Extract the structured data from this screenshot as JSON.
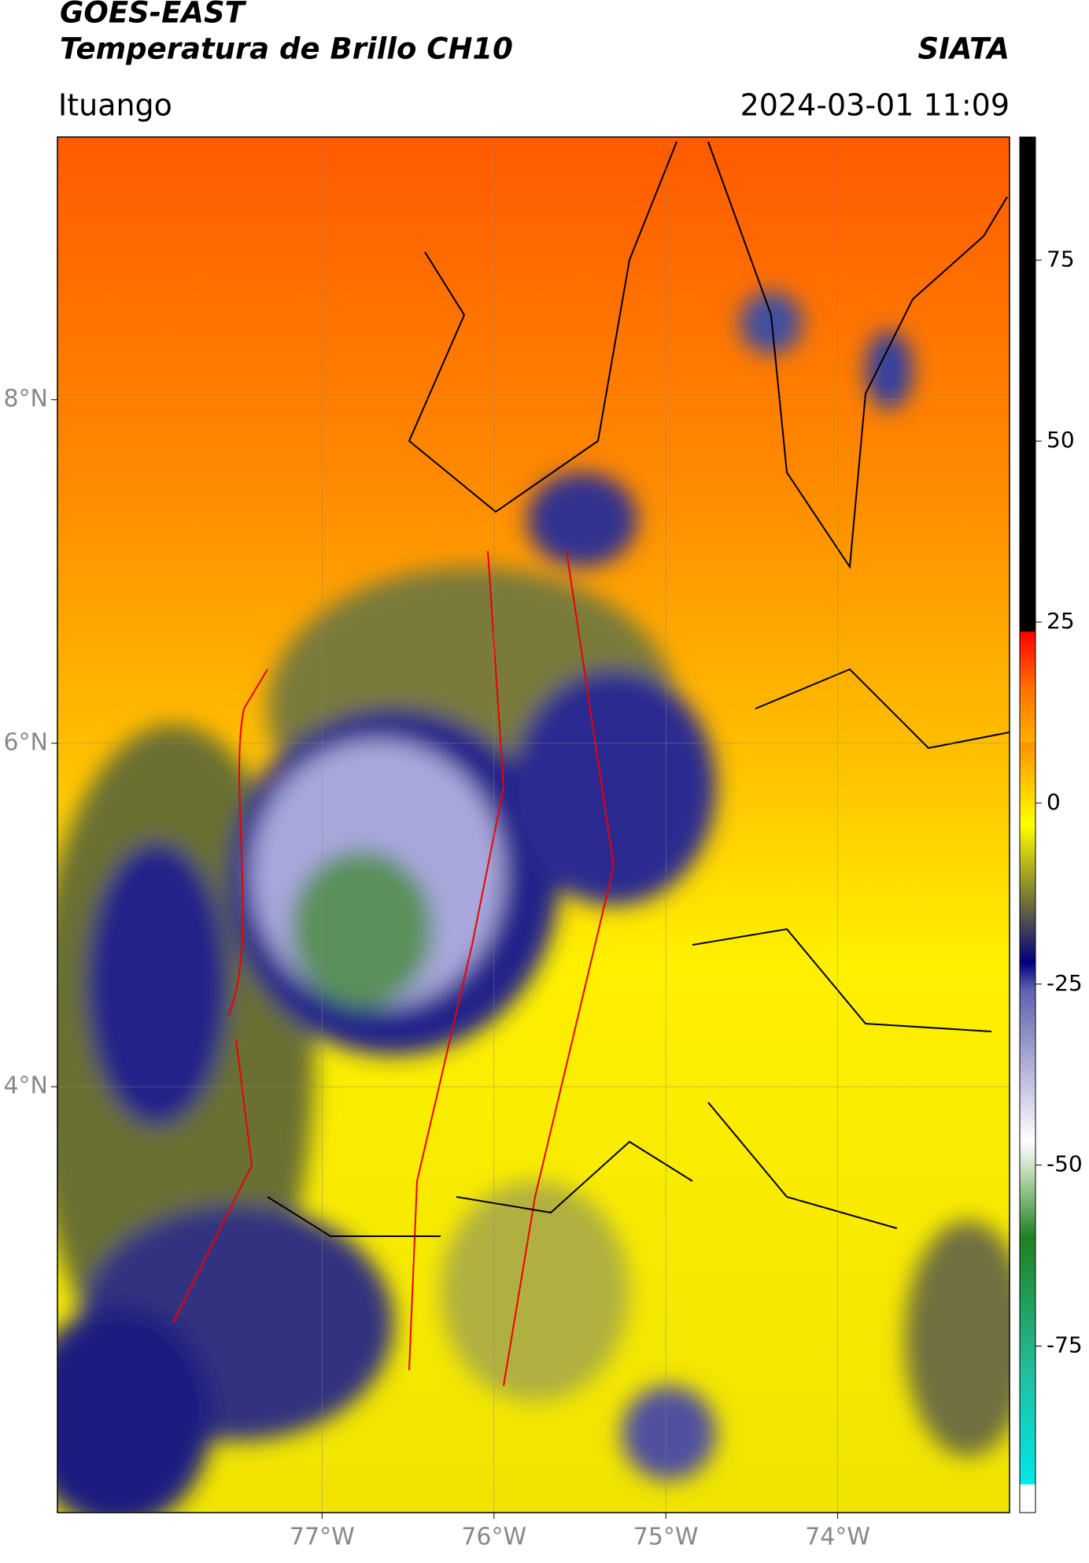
{
  "header": {
    "title": "GOES-EAST",
    "subtitle": "Temperatura de Brillo CH10",
    "brand": "SIATA",
    "location": "Ituango",
    "datetime": "2024-03-01 11:09"
  },
  "map": {
    "xlim": [
      -78.54,
      -73.0
    ],
    "ylim": [
      1.52,
      9.53
    ],
    "xticks": [
      {
        "value": -77,
        "label": "77°W"
      },
      {
        "value": -76,
        "label": "76°W"
      },
      {
        "value": -75,
        "label": "75°W"
      },
      {
        "value": -74,
        "label": "74°W"
      }
    ],
    "yticks": [
      {
        "value": 4,
        "label": "4°N"
      },
      {
        "value": 6,
        "label": "6°N"
      },
      {
        "value": 8,
        "label": "8°N"
      }
    ],
    "grid": true
  },
  "colorbar": {
    "lim": [
      -98,
      92
    ],
    "ticks": [
      -75,
      -50,
      -25,
      0,
      25,
      50,
      75
    ]
  }
}
